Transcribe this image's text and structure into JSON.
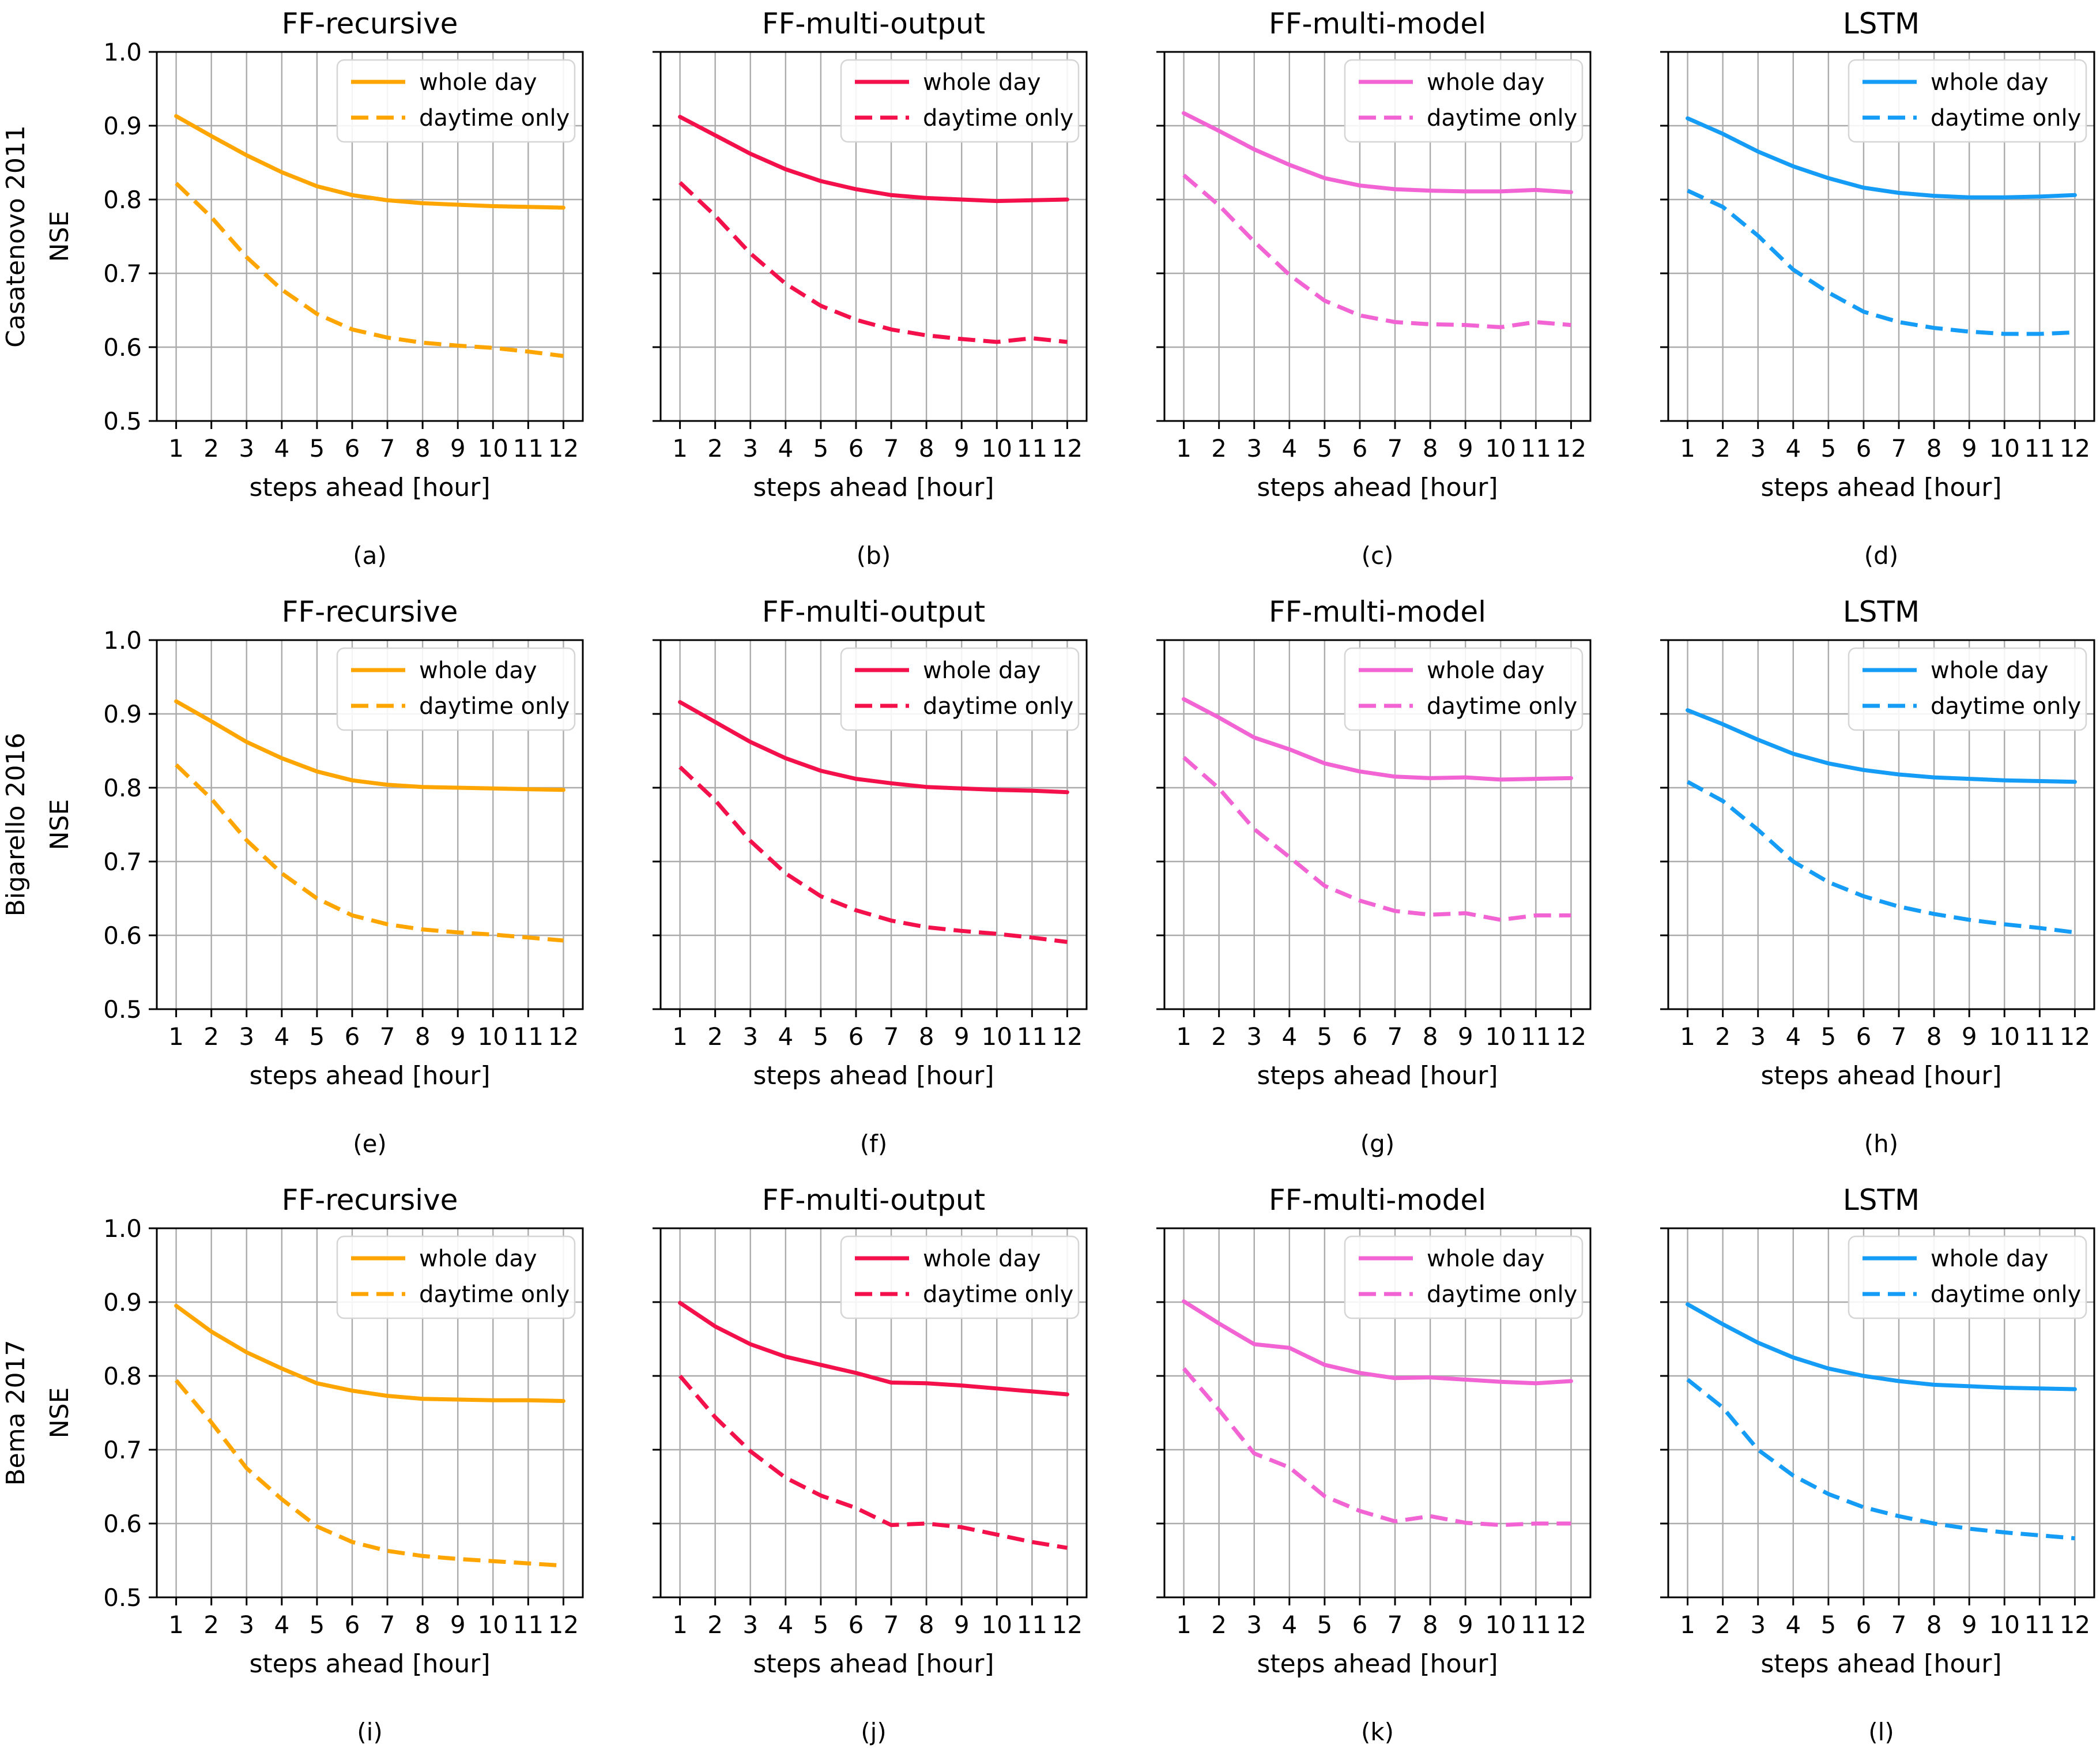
{
  "figure": {
    "xlabel": "steps ahead [hour]",
    "ylabel": "NSE",
    "legend_labels": [
      "whole day",
      "daytime only"
    ],
    "legend_position": "upper right",
    "grid": true,
    "x_ticks": [
      1,
      2,
      3,
      4,
      5,
      6,
      7,
      8,
      9,
      10,
      11,
      12
    ],
    "y_ticks": [
      "1.0",
      "0.9",
      "0.8",
      "0.7",
      "0.6",
      "0.5"
    ],
    "row_labels": [
      "Casatenovo 2011",
      "Bigarello 2016",
      "Bema 2017"
    ],
    "column_titles": [
      "FF-recursive",
      "FF-multi-output",
      "FF-multi-model",
      "LSTM"
    ],
    "colors": {
      "FF-recursive": "#FFA500",
      "FF-multi-output": "#F4104A",
      "FF-multi-model": "#F263D3",
      "LSTM": "#149CF6",
      "gridline": "#ababab",
      "axis": "#000000",
      "legend_border": "#d5d5d5"
    }
  },
  "chart_data": [
    {
      "type": "line",
      "title": "FF-recursive",
      "dataset": "Casatenovo 2011",
      "sublabel": "(a)",
      "color": "#FFA500",
      "xlabel": "steps ahead [hour]",
      "ylabel": "NSE",
      "x": [
        1,
        2,
        3,
        4,
        5,
        6,
        7,
        8,
        9,
        10,
        11,
        12
      ],
      "ylim": [
        0.5,
        1.0
      ],
      "xlim": [
        0.45,
        12.55
      ],
      "series": [
        {
          "name": "whole day",
          "style": "solid",
          "values": [
            0.913,
            0.886,
            0.86,
            0.837,
            0.818,
            0.806,
            0.799,
            0.795,
            0.793,
            0.791,
            0.79,
            0.789
          ]
        },
        {
          "name": "daytime only",
          "style": "dashed",
          "values": [
            0.822,
            0.776,
            0.722,
            0.678,
            0.645,
            0.624,
            0.613,
            0.606,
            0.602,
            0.599,
            0.594,
            0.588
          ]
        }
      ]
    },
    {
      "type": "line",
      "title": "FF-multi-output",
      "dataset": "Casatenovo 2011",
      "sublabel": "(b)",
      "color": "#F4104A",
      "xlabel": "steps ahead [hour]",
      "ylabel": "",
      "x": [
        1,
        2,
        3,
        4,
        5,
        6,
        7,
        8,
        9,
        10,
        11,
        12
      ],
      "ylim": [
        0.5,
        1.0
      ],
      "xlim": [
        0.45,
        12.55
      ],
      "series": [
        {
          "name": "whole day",
          "style": "solid",
          "values": [
            0.912,
            0.887,
            0.862,
            0.841,
            0.825,
            0.814,
            0.806,
            0.802,
            0.8,
            0.798,
            0.799,
            0.8
          ]
        },
        {
          "name": "daytime only",
          "style": "dashed",
          "values": [
            0.823,
            0.778,
            0.727,
            0.686,
            0.656,
            0.637,
            0.624,
            0.616,
            0.611,
            0.607,
            0.612,
            0.607
          ]
        }
      ]
    },
    {
      "type": "line",
      "title": "FF-multi-model",
      "dataset": "Casatenovo 2011",
      "sublabel": "(c)",
      "color": "#F263D3",
      "xlabel": "steps ahead [hour]",
      "ylabel": "",
      "x": [
        1,
        2,
        3,
        4,
        5,
        6,
        7,
        8,
        9,
        10,
        11,
        12
      ],
      "ylim": [
        0.5,
        1.0
      ],
      "xlim": [
        0.45,
        12.55
      ],
      "series": [
        {
          "name": "whole day",
          "style": "solid",
          "values": [
            0.917,
            0.893,
            0.868,
            0.847,
            0.829,
            0.819,
            0.814,
            0.812,
            0.811,
            0.811,
            0.813,
            0.81
          ]
        },
        {
          "name": "daytime only",
          "style": "dashed",
          "values": [
            0.833,
            0.792,
            0.743,
            0.698,
            0.663,
            0.643,
            0.634,
            0.631,
            0.63,
            0.627,
            0.634,
            0.63
          ]
        }
      ]
    },
    {
      "type": "line",
      "title": "LSTM",
      "dataset": "Casatenovo 2011",
      "sublabel": "(d)",
      "color": "#149CF6",
      "xlabel": "steps ahead [hour]",
      "ylabel": "",
      "x": [
        1,
        2,
        3,
        4,
        5,
        6,
        7,
        8,
        9,
        10,
        11,
        12
      ],
      "ylim": [
        0.5,
        1.0
      ],
      "xlim": [
        0.45,
        12.55
      ],
      "series": [
        {
          "name": "whole day",
          "style": "solid",
          "values": [
            0.91,
            0.889,
            0.865,
            0.845,
            0.829,
            0.816,
            0.809,
            0.805,
            0.803,
            0.803,
            0.804,
            0.806
          ]
        },
        {
          "name": "daytime only",
          "style": "dashed",
          "values": [
            0.812,
            0.79,
            0.751,
            0.705,
            0.674,
            0.648,
            0.634,
            0.626,
            0.621,
            0.618,
            0.618,
            0.62
          ]
        }
      ]
    },
    {
      "type": "line",
      "title": "FF-recursive",
      "dataset": "Bigarello 2016",
      "sublabel": "(e)",
      "color": "#FFA500",
      "xlabel": "steps ahead [hour]",
      "ylabel": "NSE",
      "x": [
        1,
        2,
        3,
        4,
        5,
        6,
        7,
        8,
        9,
        10,
        11,
        12
      ],
      "ylim": [
        0.5,
        1.0
      ],
      "xlim": [
        0.45,
        12.55
      ],
      "series": [
        {
          "name": "whole day",
          "style": "solid",
          "values": [
            0.917,
            0.89,
            0.862,
            0.84,
            0.822,
            0.81,
            0.804,
            0.801,
            0.8,
            0.799,
            0.798,
            0.797
          ]
        },
        {
          "name": "daytime only",
          "style": "dashed",
          "values": [
            0.831,
            0.785,
            0.729,
            0.684,
            0.65,
            0.627,
            0.615,
            0.608,
            0.604,
            0.601,
            0.597,
            0.593
          ]
        }
      ]
    },
    {
      "type": "line",
      "title": "FF-multi-output",
      "dataset": "Bigarello 2016",
      "sublabel": "(f)",
      "color": "#F4104A",
      "xlabel": "steps ahead [hour]",
      "ylabel": "",
      "x": [
        1,
        2,
        3,
        4,
        5,
        6,
        7,
        8,
        9,
        10,
        11,
        12
      ],
      "ylim": [
        0.5,
        1.0
      ],
      "xlim": [
        0.45,
        12.55
      ],
      "series": [
        {
          "name": "whole day",
          "style": "solid",
          "values": [
            0.916,
            0.889,
            0.862,
            0.84,
            0.823,
            0.812,
            0.806,
            0.801,
            0.799,
            0.797,
            0.796,
            0.794
          ]
        },
        {
          "name": "daytime only",
          "style": "dashed",
          "values": [
            0.828,
            0.783,
            0.728,
            0.684,
            0.653,
            0.634,
            0.62,
            0.611,
            0.606,
            0.602,
            0.597,
            0.591
          ]
        }
      ]
    },
    {
      "type": "line",
      "title": "FF-multi-model",
      "dataset": "Bigarello 2016",
      "sublabel": "(g)",
      "color": "#F263D3",
      "xlabel": "steps ahead [hour]",
      "ylabel": "",
      "x": [
        1,
        2,
        3,
        4,
        5,
        6,
        7,
        8,
        9,
        10,
        11,
        12
      ],
      "ylim": [
        0.5,
        1.0
      ],
      "xlim": [
        0.45,
        12.55
      ],
      "series": [
        {
          "name": "whole day",
          "style": "solid",
          "values": [
            0.92,
            0.895,
            0.868,
            0.852,
            0.833,
            0.822,
            0.815,
            0.813,
            0.814,
            0.811,
            0.812,
            0.813
          ]
        },
        {
          "name": "daytime only",
          "style": "dashed",
          "values": [
            0.841,
            0.799,
            0.744,
            0.706,
            0.667,
            0.647,
            0.633,
            0.628,
            0.63,
            0.621,
            0.627,
            0.627
          ]
        }
      ]
    },
    {
      "type": "line",
      "title": "LSTM",
      "dataset": "Bigarello 2016",
      "sublabel": "(h)",
      "color": "#149CF6",
      "xlabel": "steps ahead [hour]",
      "ylabel": "",
      "x": [
        1,
        2,
        3,
        4,
        5,
        6,
        7,
        8,
        9,
        10,
        11,
        12
      ],
      "ylim": [
        0.5,
        1.0
      ],
      "xlim": [
        0.45,
        12.55
      ],
      "series": [
        {
          "name": "whole day",
          "style": "solid",
          "values": [
            0.905,
            0.886,
            0.865,
            0.846,
            0.833,
            0.824,
            0.818,
            0.814,
            0.812,
            0.81,
            0.809,
            0.808
          ]
        },
        {
          "name": "daytime only",
          "style": "dashed",
          "values": [
            0.808,
            0.782,
            0.743,
            0.7,
            0.672,
            0.653,
            0.639,
            0.629,
            0.621,
            0.615,
            0.61,
            0.604
          ]
        }
      ]
    },
    {
      "type": "line",
      "title": "FF-recursive",
      "dataset": "Bema 2017",
      "sublabel": "(i)",
      "color": "#FFA500",
      "xlabel": "steps ahead [hour]",
      "ylabel": "NSE",
      "x": [
        1,
        2,
        3,
        4,
        5,
        6,
        7,
        8,
        9,
        10,
        11,
        12
      ],
      "ylim": [
        0.5,
        1.0
      ],
      "xlim": [
        0.45,
        12.55
      ],
      "series": [
        {
          "name": "whole day",
          "style": "solid",
          "values": [
            0.895,
            0.86,
            0.832,
            0.81,
            0.79,
            0.78,
            0.773,
            0.769,
            0.768,
            0.767,
            0.767,
            0.766
          ]
        },
        {
          "name": "daytime only",
          "style": "dashed",
          "values": [
            0.794,
            0.737,
            0.675,
            0.633,
            0.596,
            0.575,
            0.563,
            0.556,
            0.552,
            0.549,
            0.546,
            0.543
          ]
        }
      ]
    },
    {
      "type": "line",
      "title": "FF-multi-output",
      "dataset": "Bema 2017",
      "sublabel": "(j)",
      "color": "#F4104A",
      "xlabel": "steps ahead [hour]",
      "ylabel": "",
      "x": [
        1,
        2,
        3,
        4,
        5,
        6,
        7,
        8,
        9,
        10,
        11,
        12
      ],
      "ylim": [
        0.5,
        1.0
      ],
      "xlim": [
        0.45,
        12.55
      ],
      "series": [
        {
          "name": "whole day",
          "style": "solid",
          "values": [
            0.899,
            0.867,
            0.843,
            0.826,
            0.815,
            0.804,
            0.791,
            0.79,
            0.787,
            0.783,
            0.779,
            0.775
          ]
        },
        {
          "name": "daytime only",
          "style": "dashed",
          "values": [
            0.8,
            0.744,
            0.698,
            0.662,
            0.638,
            0.621,
            0.598,
            0.6,
            0.595,
            0.585,
            0.575,
            0.567
          ]
        }
      ]
    },
    {
      "type": "line",
      "title": "FF-multi-model",
      "dataset": "Bema 2017",
      "sublabel": "(k)",
      "color": "#F263D3",
      "xlabel": "steps ahead [hour]",
      "ylabel": "",
      "x": [
        1,
        2,
        3,
        4,
        5,
        6,
        7,
        8,
        9,
        10,
        11,
        12
      ],
      "ylim": [
        0.5,
        1.0
      ],
      "xlim": [
        0.45,
        12.55
      ],
      "series": [
        {
          "name": "whole day",
          "style": "solid",
          "values": [
            0.901,
            0.871,
            0.843,
            0.838,
            0.815,
            0.804,
            0.797,
            0.798,
            0.795,
            0.792,
            0.79,
            0.793
          ]
        },
        {
          "name": "daytime only",
          "style": "dashed",
          "values": [
            0.81,
            0.754,
            0.695,
            0.676,
            0.637,
            0.617,
            0.603,
            0.61,
            0.601,
            0.598,
            0.6,
            0.6
          ]
        }
      ]
    },
    {
      "type": "line",
      "title": "LSTM",
      "dataset": "Bema 2017",
      "sublabel": "(l)",
      "color": "#149CF6",
      "xlabel": "steps ahead [hour]",
      "ylabel": "",
      "x": [
        1,
        2,
        3,
        4,
        5,
        6,
        7,
        8,
        9,
        10,
        11,
        12
      ],
      "ylim": [
        0.5,
        1.0
      ],
      "xlim": [
        0.45,
        12.55
      ],
      "series": [
        {
          "name": "whole day",
          "style": "solid",
          "values": [
            0.897,
            0.87,
            0.845,
            0.825,
            0.81,
            0.8,
            0.793,
            0.788,
            0.786,
            0.784,
            0.783,
            0.782
          ]
        },
        {
          "name": "daytime only",
          "style": "dashed",
          "values": [
            0.795,
            0.757,
            0.7,
            0.665,
            0.64,
            0.622,
            0.61,
            0.6,
            0.593,
            0.588,
            0.584,
            0.58
          ]
        }
      ]
    }
  ]
}
